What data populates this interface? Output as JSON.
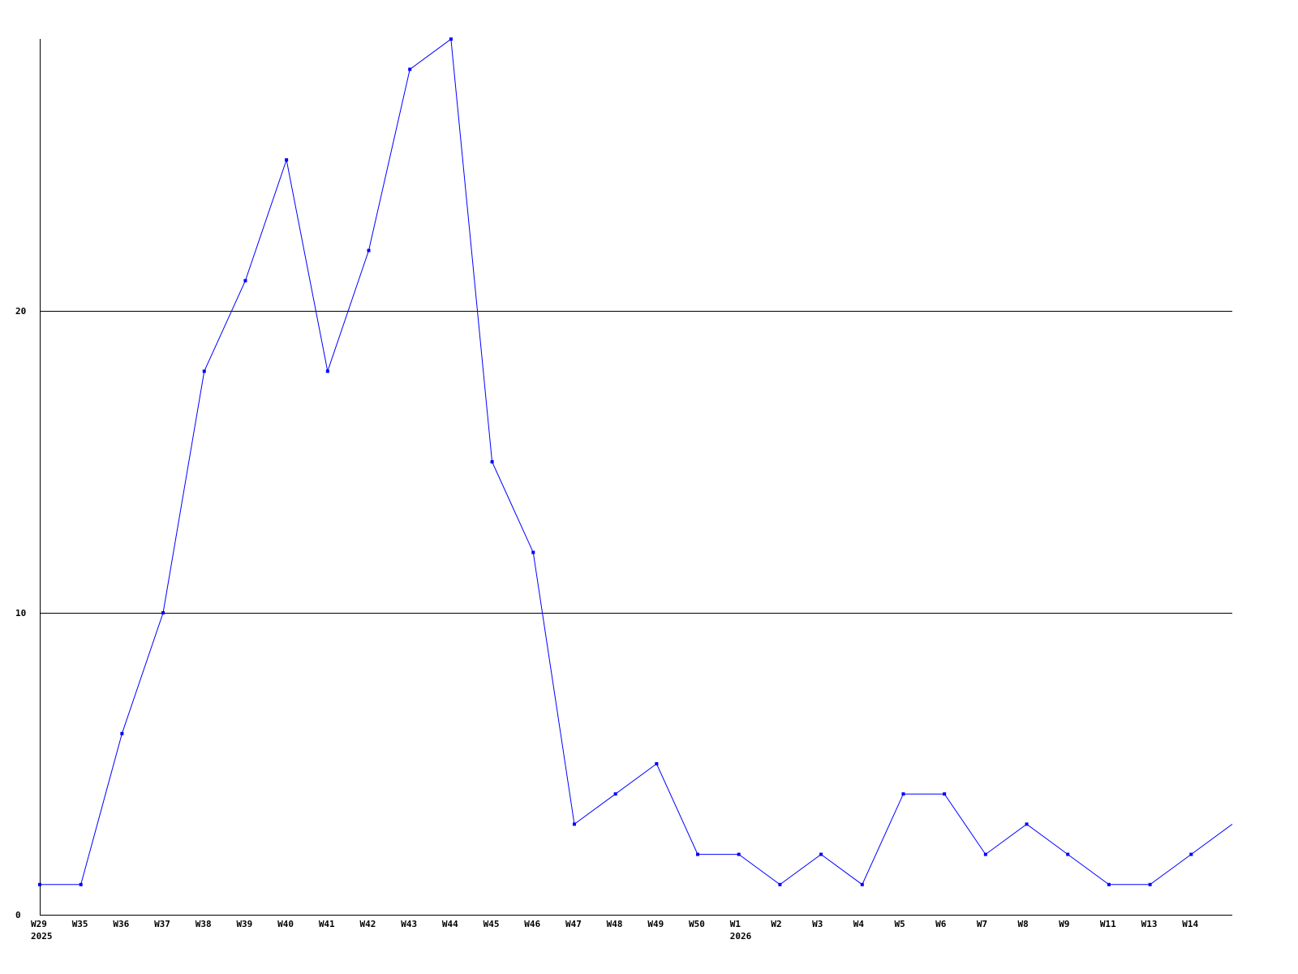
{
  "chart_data": {
    "type": "line",
    "title": "",
    "xlabel": "",
    "ylabel": "",
    "categories": [
      "W29",
      "W35",
      "W36",
      "W37",
      "W38",
      "W39",
      "W40",
      "W41",
      "W42",
      "W43",
      "W44",
      "W45",
      "W46",
      "W47",
      "W48",
      "W49",
      "W50",
      "W1",
      "W2",
      "W3",
      "W4",
      "W5",
      "W6",
      "W7",
      "W8",
      "W9",
      "W11",
      "W13",
      "W14",
      ""
    ],
    "year_labels": [
      {
        "category_index": 0,
        "label": "2025"
      },
      {
        "category_index": 17,
        "label": "2026"
      }
    ],
    "series": [
      {
        "values": [
          1,
          1,
          6,
          10,
          18,
          21,
          25,
          18,
          22,
          28,
          29,
          15,
          12,
          3,
          4,
          5,
          2,
          2,
          1,
          2,
          1,
          4,
          4,
          2,
          3,
          2,
          1,
          1,
          2,
          3
        ],
        "color": "#0000ff"
      }
    ],
    "yticks": [
      0,
      10,
      20
    ],
    "ylim": [
      0,
      29
    ],
    "grid": "horizontal lines at 10 and 20",
    "axis_color": "#000000"
  }
}
